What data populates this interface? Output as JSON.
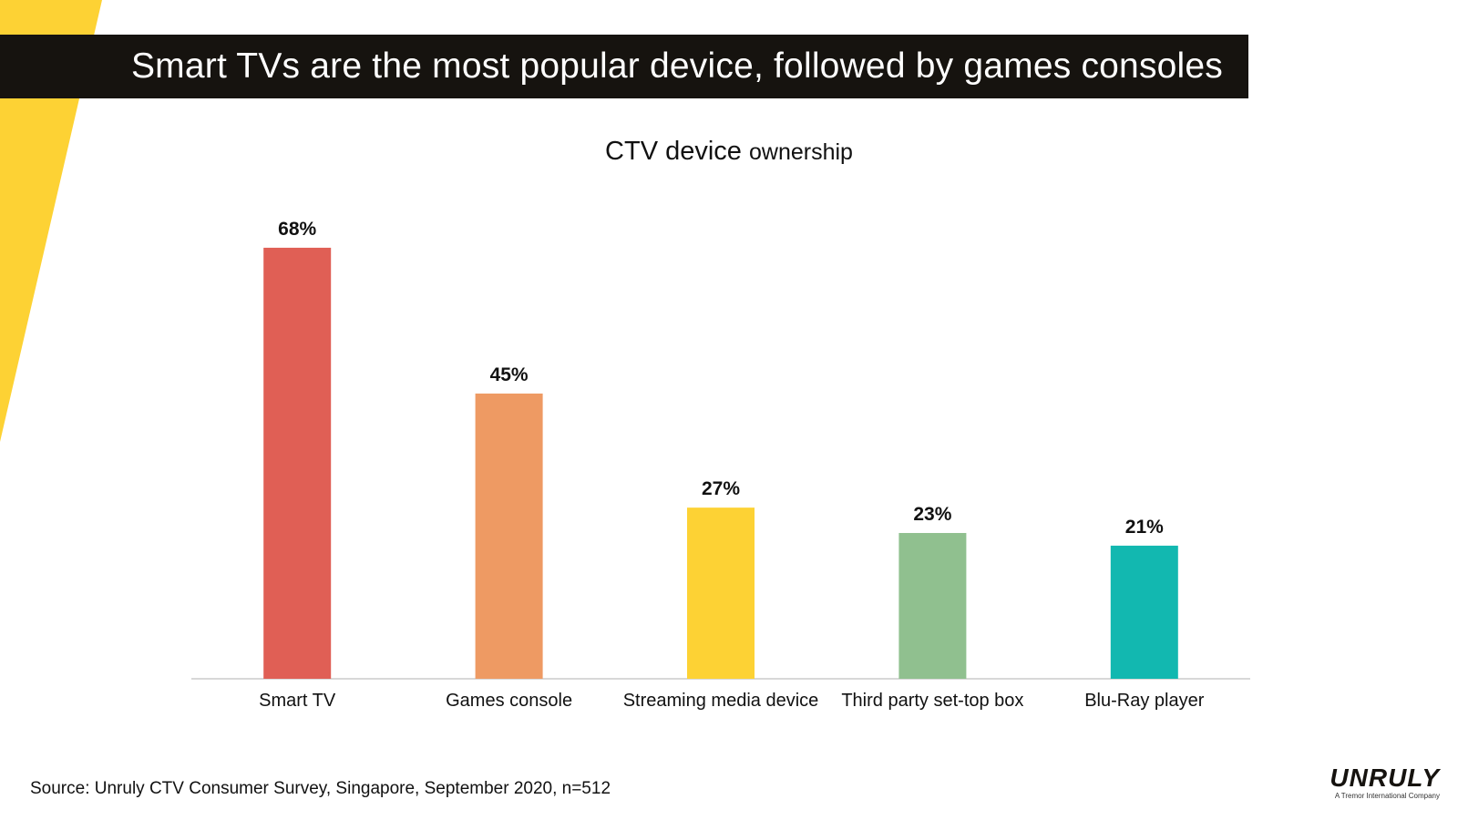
{
  "banner": {
    "title": "Smart TVs are the most popular device, followed by games consoles"
  },
  "chart_title": {
    "main": "CTV device",
    "sub": "ownership"
  },
  "chart_data": {
    "type": "bar",
    "title": "CTV device ownership",
    "categories": [
      "Smart TV",
      "Games console",
      "Streaming media device",
      "Third party set-top box",
      "Blu-Ray player"
    ],
    "values": [
      68,
      45,
      27,
      23,
      21
    ],
    "labels": [
      "68%",
      "45%",
      "27%",
      "23%",
      "21%"
    ],
    "colors": [
      "#e05f55",
      "#ee9a63",
      "#fdd234",
      "#90c08f",
      "#12b8b0"
    ],
    "xlabel": "",
    "ylabel": "",
    "ylim": [
      0,
      70
    ],
    "grid": false,
    "legend": "none"
  },
  "source": "Source: Unruly CTV Consumer Survey, Singapore, September 2020, n=512",
  "logo": {
    "word": "UNRULY",
    "tagline": "A Tremor International Company"
  },
  "colors": {
    "accent_yellow": "#fdd234",
    "banner_bg": "#16130f",
    "axis": "#cccccc"
  }
}
